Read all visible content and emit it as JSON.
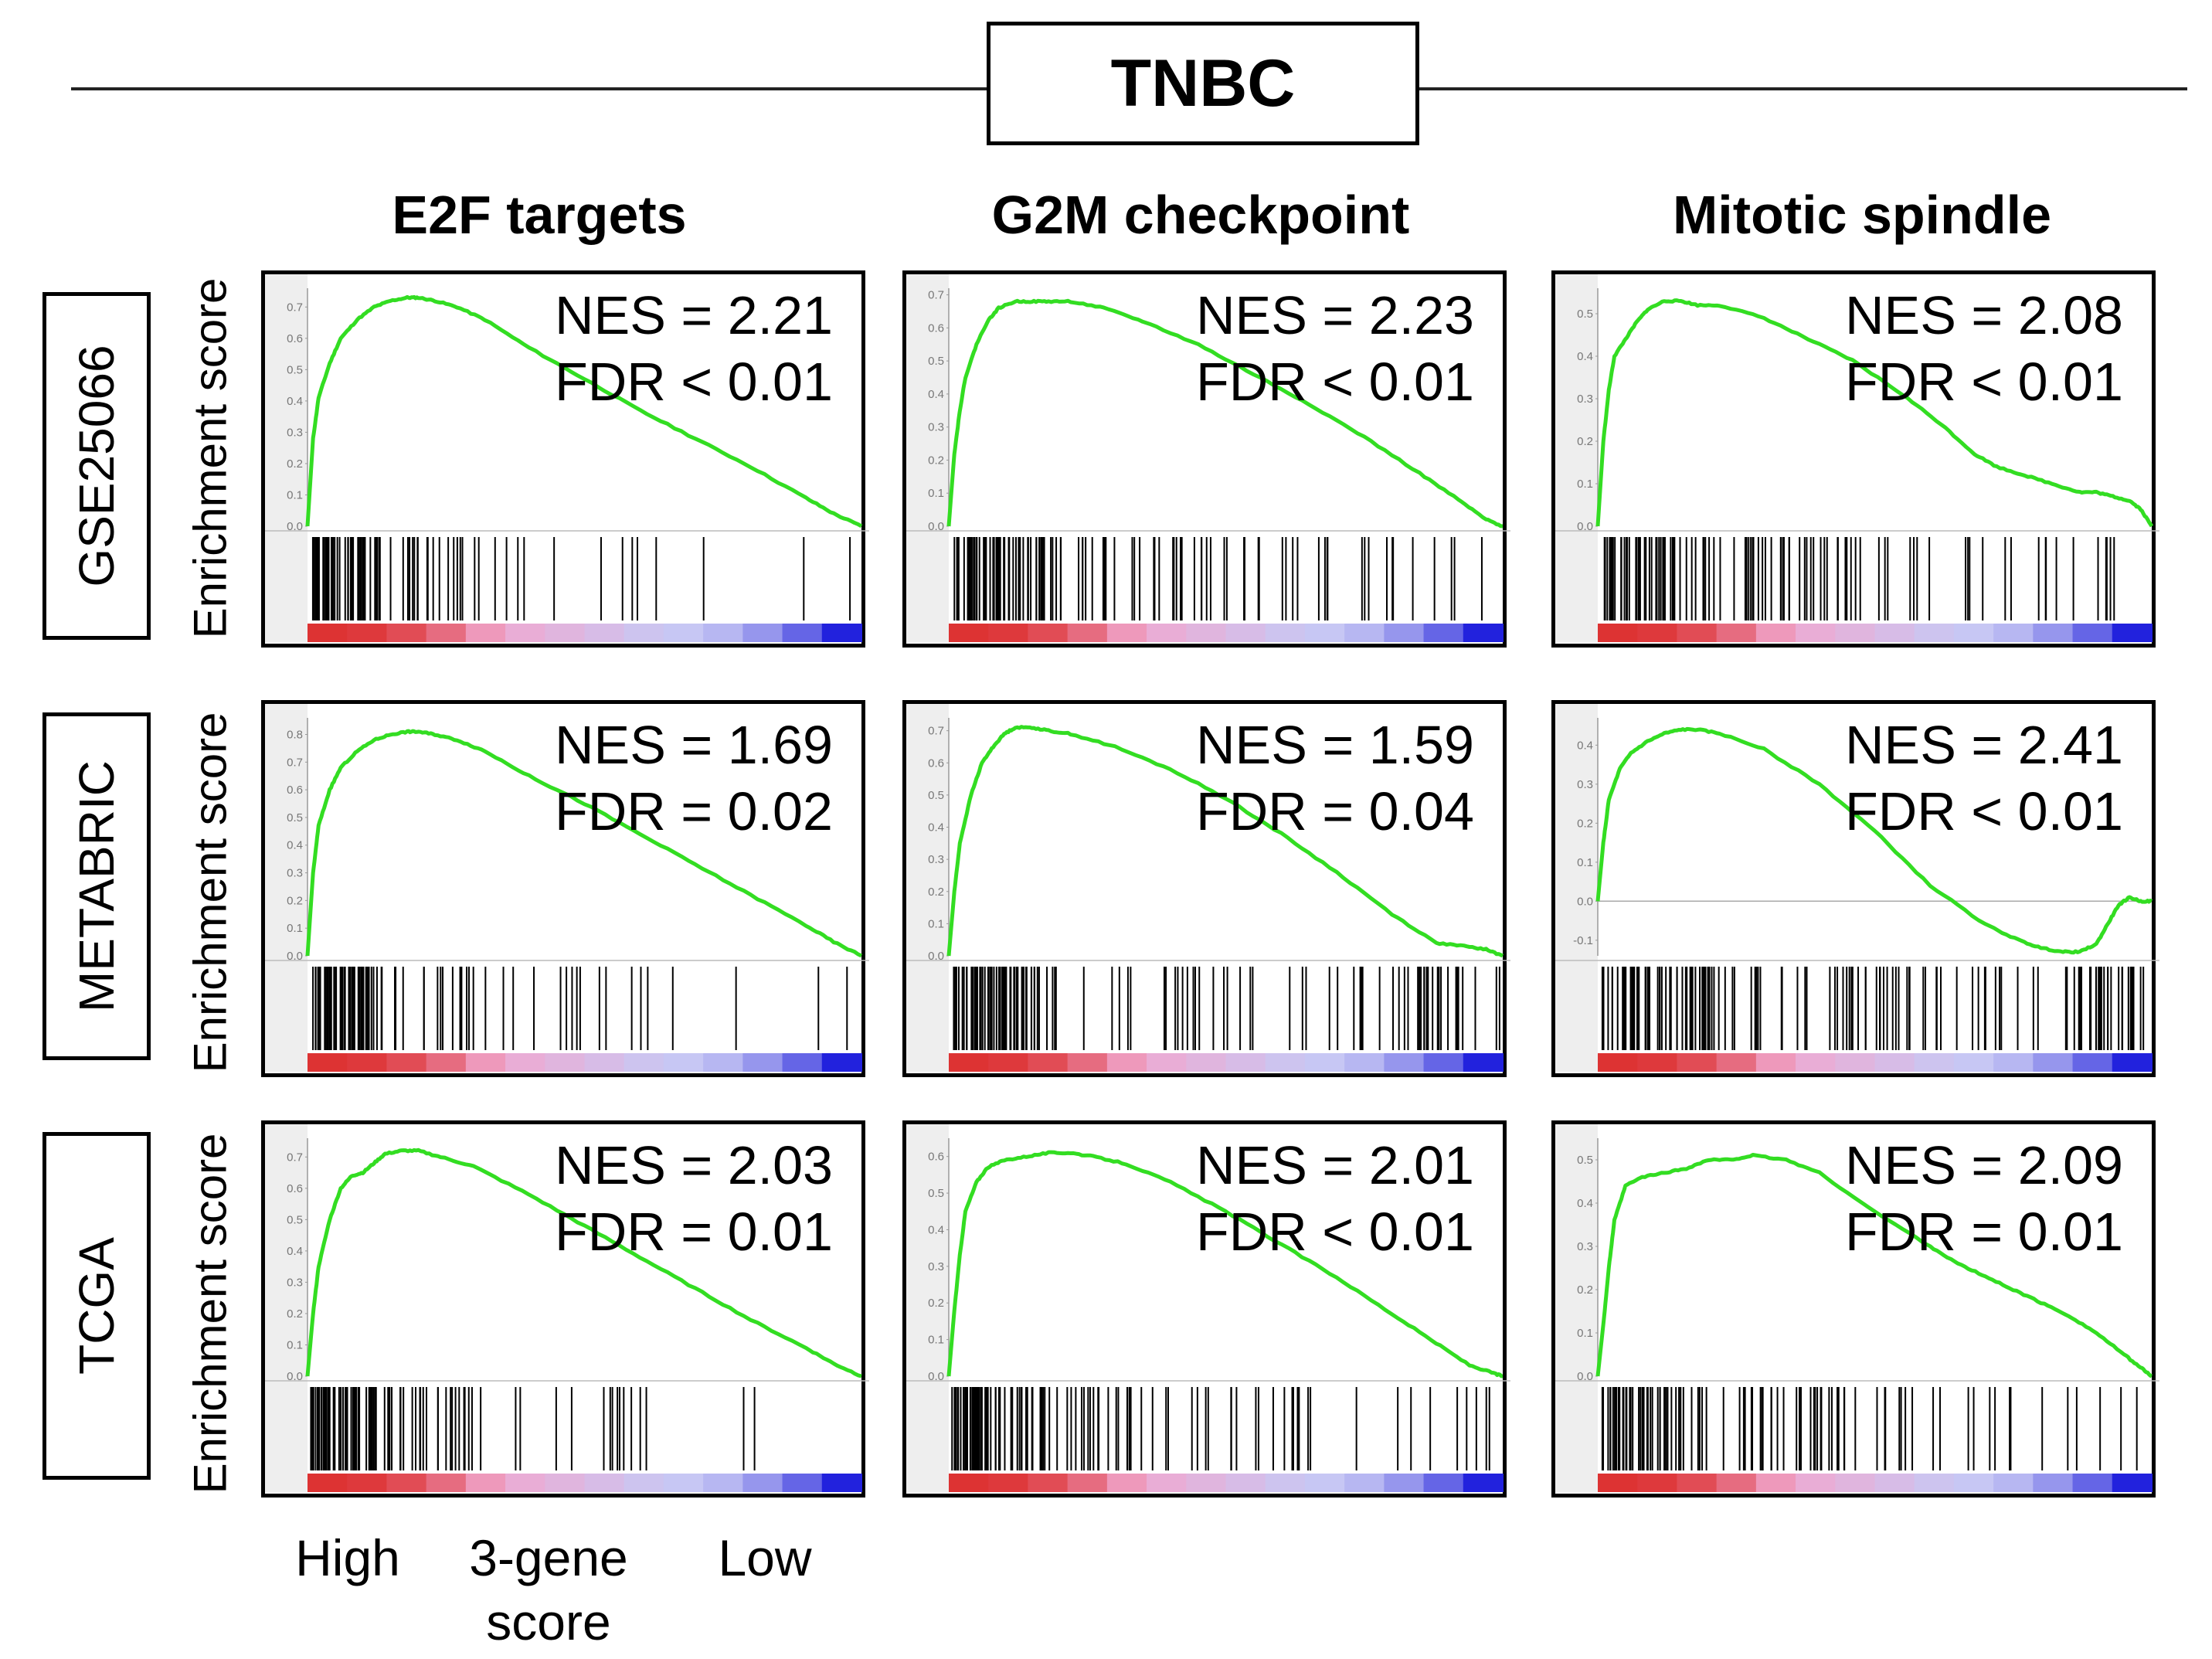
{
  "figure_title": "TNBC",
  "column_titles": [
    "E2F targets",
    "G2M checkpoint",
    "Mitotic spindle"
  ],
  "row_labels": [
    "GSE25066",
    "METABRIC",
    "TCGA"
  ],
  "y_axis_label": "Enrichment score",
  "x_axis_labels": {
    "high": "High",
    "middle": "3-gene\nscore",
    "low": "Low"
  },
  "colors": {
    "curve": "#33dd22",
    "ranked_high": "#dd3333",
    "ranked_mid_high": "#f0a8d0",
    "ranked_mid_low": "#c8c8f4",
    "ranked_low": "#2222dd",
    "frame": "#000000",
    "tick_area": "#eeeeee"
  },
  "chart_data": [
    {
      "type": "line",
      "row": "GSE25066",
      "column": "E2F targets",
      "nes_label": "NES = 2.21",
      "fdr_label": "FDR < 0.01",
      "yticks": [
        "0.0",
        "0.1",
        "0.2",
        "0.3",
        "0.4",
        "0.5",
        "0.6",
        "0.7"
      ],
      "ylim": [
        0,
        0.76
      ],
      "x": [
        0,
        0.01,
        0.02,
        0.04,
        0.06,
        0.09,
        0.12,
        0.15,
        0.18,
        0.2,
        0.23,
        0.27,
        0.32,
        0.4,
        0.5,
        0.6,
        0.7,
        0.8,
        0.9,
        0.95,
        1
      ],
      "y": [
        0,
        0.28,
        0.41,
        0.52,
        0.6,
        0.66,
        0.7,
        0.72,
        0.73,
        0.73,
        0.72,
        0.7,
        0.66,
        0.57,
        0.47,
        0.37,
        0.28,
        0.19,
        0.09,
        0.04,
        0
      ],
      "hits": {
        "seed": 11,
        "bands": [
          [
            0,
            0.13,
            58
          ],
          [
            0.13,
            0.26,
            14
          ],
          [
            0.26,
            0.45,
            11
          ],
          [
            0.45,
            0.75,
            6
          ],
          [
            0.75,
            1,
            2
          ]
        ]
      }
    },
    {
      "type": "line",
      "row": "GSE25066",
      "column": "G2M checkpoint",
      "nes_label": "NES = 2.23",
      "fdr_label": "FDR < 0.01",
      "yticks": [
        "0.0",
        "0.1",
        "0.2",
        "0.3",
        "0.4",
        "0.5",
        "0.6",
        "0.7"
      ],
      "ylim": [
        0,
        0.72
      ],
      "x": [
        0,
        0.01,
        0.02,
        0.03,
        0.05,
        0.07,
        0.09,
        0.12,
        0.15,
        0.18,
        0.22,
        0.28,
        0.35,
        0.45,
        0.55,
        0.65,
        0.75,
        0.85,
        0.92,
        0.97,
        1
      ],
      "y": [
        0,
        0.22,
        0.35,
        0.45,
        0.55,
        0.62,
        0.66,
        0.68,
        0.68,
        0.68,
        0.68,
        0.66,
        0.62,
        0.55,
        0.46,
        0.37,
        0.27,
        0.16,
        0.08,
        0.02,
        0
      ],
      "hits": {
        "seed": 22,
        "bands": [
          [
            0,
            0.2,
            60
          ],
          [
            0.2,
            0.5,
            26
          ],
          [
            0.5,
            0.75,
            14
          ],
          [
            0.75,
            1,
            10
          ]
        ]
      }
    },
    {
      "type": "line",
      "row": "GSE25066",
      "column": "Mitotic spindle",
      "nes_label": "NES = 2.08",
      "fdr_label": "FDR < 0.01",
      "yticks": [
        "0.0",
        "0.1",
        "0.2",
        "0.3",
        "0.4",
        "0.5"
      ],
      "ylim": [
        0,
        0.56
      ],
      "x": [
        0,
        0.01,
        0.02,
        0.03,
        0.05,
        0.07,
        0.09,
        0.12,
        0.15,
        0.18,
        0.22,
        0.3,
        0.38,
        0.46,
        0.55,
        0.62,
        0.68,
        0.72,
        0.77,
        0.82,
        0.87,
        0.9,
        0.93,
        0.96,
        0.98,
        1
      ],
      "y": [
        0,
        0.2,
        0.32,
        0.4,
        0.44,
        0.48,
        0.51,
        0.53,
        0.53,
        0.52,
        0.52,
        0.49,
        0.44,
        0.39,
        0.31,
        0.24,
        0.17,
        0.14,
        0.12,
        0.1,
        0.08,
        0.08,
        0.07,
        0.06,
        0.04,
        0
      ],
      "hits": {
        "seed": 33,
        "bands": [
          [
            0,
            0.15,
            44
          ],
          [
            0.15,
            0.45,
            38
          ],
          [
            0.45,
            0.75,
            16
          ],
          [
            0.75,
            1,
            10
          ]
        ]
      }
    },
    {
      "type": "line",
      "row": "METABRIC",
      "column": "E2F targets",
      "nes_label": "NES = 1.69",
      "fdr_label": "FDR = 0.02",
      "yticks": [
        "0.0",
        "0.1",
        "0.2",
        "0.3",
        "0.4",
        "0.5",
        "0.6",
        "0.7",
        "0.8"
      ],
      "ylim": [
        0,
        0.86
      ],
      "x": [
        0,
        0.01,
        0.02,
        0.04,
        0.06,
        0.09,
        0.12,
        0.15,
        0.18,
        0.2,
        0.23,
        0.27,
        0.32,
        0.4,
        0.5,
        0.6,
        0.7,
        0.8,
        0.9,
        0.95,
        1
      ],
      "y": [
        0,
        0.3,
        0.47,
        0.6,
        0.68,
        0.74,
        0.78,
        0.8,
        0.81,
        0.81,
        0.8,
        0.78,
        0.74,
        0.65,
        0.55,
        0.44,
        0.33,
        0.22,
        0.11,
        0.05,
        0
      ],
      "hits": {
        "seed": 44,
        "bands": [
          [
            0,
            0.12,
            56
          ],
          [
            0.12,
            0.3,
            18
          ],
          [
            0.3,
            0.6,
            12
          ],
          [
            0.6,
            1,
            6
          ]
        ]
      }
    },
    {
      "type": "line",
      "row": "METABRIC",
      "column": "G2M checkpoint",
      "nes_label": "NES = 1.59",
      "fdr_label": "FDR = 0.04",
      "yticks": [
        "0.0",
        "0.1",
        "0.2",
        "0.3",
        "0.4",
        "0.5",
        "0.6",
        "0.7"
      ],
      "ylim": [
        0,
        0.74
      ],
      "x": [
        0,
        0.01,
        0.02,
        0.04,
        0.06,
        0.08,
        0.1,
        0.12,
        0.15,
        0.18,
        0.22,
        0.3,
        0.4,
        0.5,
        0.6,
        0.7,
        0.8,
        0.88,
        0.93,
        0.97,
        1
      ],
      "y": [
        0,
        0.2,
        0.35,
        0.5,
        0.6,
        0.65,
        0.69,
        0.71,
        0.71,
        0.7,
        0.69,
        0.65,
        0.58,
        0.49,
        0.38,
        0.26,
        0.13,
        0.04,
        0.03,
        0.02,
        0
      ],
      "hits": {
        "seed": 55,
        "bands": [
          [
            0,
            0.16,
            60
          ],
          [
            0.16,
            0.55,
            24
          ],
          [
            0.55,
            0.85,
            14
          ],
          [
            0.85,
            1,
            22
          ]
        ]
      }
    },
    {
      "type": "line",
      "row": "METABRIC",
      "column": "Mitotic spindle",
      "nes_label": "NES = 2.41",
      "fdr_label": "FDR < 0.01",
      "yticks": [
        "-0.1",
        "0.0",
        "0.1",
        "0.2",
        "0.3",
        "0.4"
      ],
      "ylim": [
        -0.14,
        0.47
      ],
      "x": [
        0,
        0.01,
        0.02,
        0.04,
        0.06,
        0.09,
        0.12,
        0.15,
        0.18,
        0.22,
        0.3,
        0.4,
        0.5,
        0.6,
        0.7,
        0.76,
        0.8,
        0.84,
        0.87,
        0.9,
        0.92,
        0.94,
        0.96,
        0.98,
        1
      ],
      "y": [
        0,
        0.15,
        0.26,
        0.34,
        0.38,
        0.41,
        0.43,
        0.44,
        0.44,
        0.43,
        0.39,
        0.3,
        0.18,
        0.04,
        -0.06,
        -0.1,
        -0.12,
        -0.13,
        -0.13,
        -0.11,
        -0.06,
        -0.01,
        0.01,
        0.0,
        0.0
      ],
      "hits": {
        "seed": 66,
        "bands": [
          [
            0,
            0.25,
            60
          ],
          [
            0.25,
            0.55,
            30
          ],
          [
            0.55,
            0.85,
            20
          ],
          [
            0.85,
            1,
            30
          ]
        ]
      }
    },
    {
      "type": "line",
      "row": "TCGA",
      "column": "E2F targets",
      "nes_label": "NES = 2.03",
      "fdr_label": "FDR = 0.01",
      "yticks": [
        "0.0",
        "0.1",
        "0.2",
        "0.3",
        "0.4",
        "0.5",
        "0.6",
        "0.7"
      ],
      "ylim": [
        0,
        0.76
      ],
      "x": [
        0,
        0.01,
        0.02,
        0.04,
        0.06,
        0.08,
        0.1,
        0.12,
        0.14,
        0.17,
        0.2,
        0.24,
        0.3,
        0.4,
        0.5,
        0.6,
        0.7,
        0.8,
        0.9,
        0.95,
        1
      ],
      "y": [
        0,
        0.2,
        0.35,
        0.5,
        0.6,
        0.64,
        0.65,
        0.68,
        0.71,
        0.72,
        0.72,
        0.7,
        0.67,
        0.58,
        0.48,
        0.38,
        0.28,
        0.18,
        0.09,
        0.04,
        0
      ],
      "hits": {
        "seed": 77,
        "bands": [
          [
            0,
            0.12,
            48
          ],
          [
            0.12,
            0.3,
            26
          ],
          [
            0.3,
            0.6,
            12
          ],
          [
            0.6,
            1,
            4
          ]
        ]
      }
    },
    {
      "type": "line",
      "row": "TCGA",
      "column": "G2M checkpoint",
      "nes_label": "NES = 2.01",
      "fdr_label": "FDR < 0.01",
      "yticks": [
        "0.0",
        "0.1",
        "0.2",
        "0.3",
        "0.4",
        "0.5",
        "0.6"
      ],
      "ylim": [
        0,
        0.65
      ],
      "x": [
        0,
        0.01,
        0.02,
        0.03,
        0.05,
        0.07,
        0.1,
        0.14,
        0.18,
        0.22,
        0.26,
        0.32,
        0.4,
        0.5,
        0.6,
        0.7,
        0.8,
        0.88,
        0.94,
        0.98,
        1
      ],
      "y": [
        0,
        0.18,
        0.33,
        0.45,
        0.53,
        0.57,
        0.59,
        0.6,
        0.61,
        0.61,
        0.6,
        0.58,
        0.53,
        0.45,
        0.36,
        0.27,
        0.17,
        0.09,
        0.03,
        0.01,
        0
      ],
      "hits": {
        "seed": 88,
        "bands": [
          [
            0,
            0.15,
            54
          ],
          [
            0.15,
            0.5,
            30
          ],
          [
            0.5,
            0.8,
            14
          ],
          [
            0.8,
            1,
            8
          ]
        ]
      }
    },
    {
      "type": "line",
      "row": "TCGA",
      "column": "Mitotic spindle",
      "nes_label": "NES = 2.09",
      "fdr_label": "FDR = 0.01",
      "yticks": [
        "0.0",
        "0.1",
        "0.2",
        "0.3",
        "0.4",
        "0.5"
      ],
      "ylim": [
        0,
        0.55
      ],
      "x": [
        0,
        0.01,
        0.02,
        0.03,
        0.05,
        0.08,
        0.12,
        0.16,
        0.2,
        0.24,
        0.28,
        0.34,
        0.4,
        0.5,
        0.6,
        0.65,
        0.7,
        0.75,
        0.8,
        0.85,
        0.9,
        0.95,
        0.98,
        1
      ],
      "y": [
        0,
        0.12,
        0.25,
        0.36,
        0.44,
        0.46,
        0.47,
        0.48,
        0.5,
        0.5,
        0.51,
        0.5,
        0.47,
        0.38,
        0.3,
        0.26,
        0.23,
        0.2,
        0.17,
        0.14,
        0.1,
        0.05,
        0.02,
        0
      ],
      "hits": {
        "seed": 99,
        "bands": [
          [
            0,
            0.15,
            42
          ],
          [
            0.15,
            0.45,
            36
          ],
          [
            0.45,
            0.75,
            16
          ],
          [
            0.75,
            1,
            6
          ]
        ]
      }
    }
  ]
}
